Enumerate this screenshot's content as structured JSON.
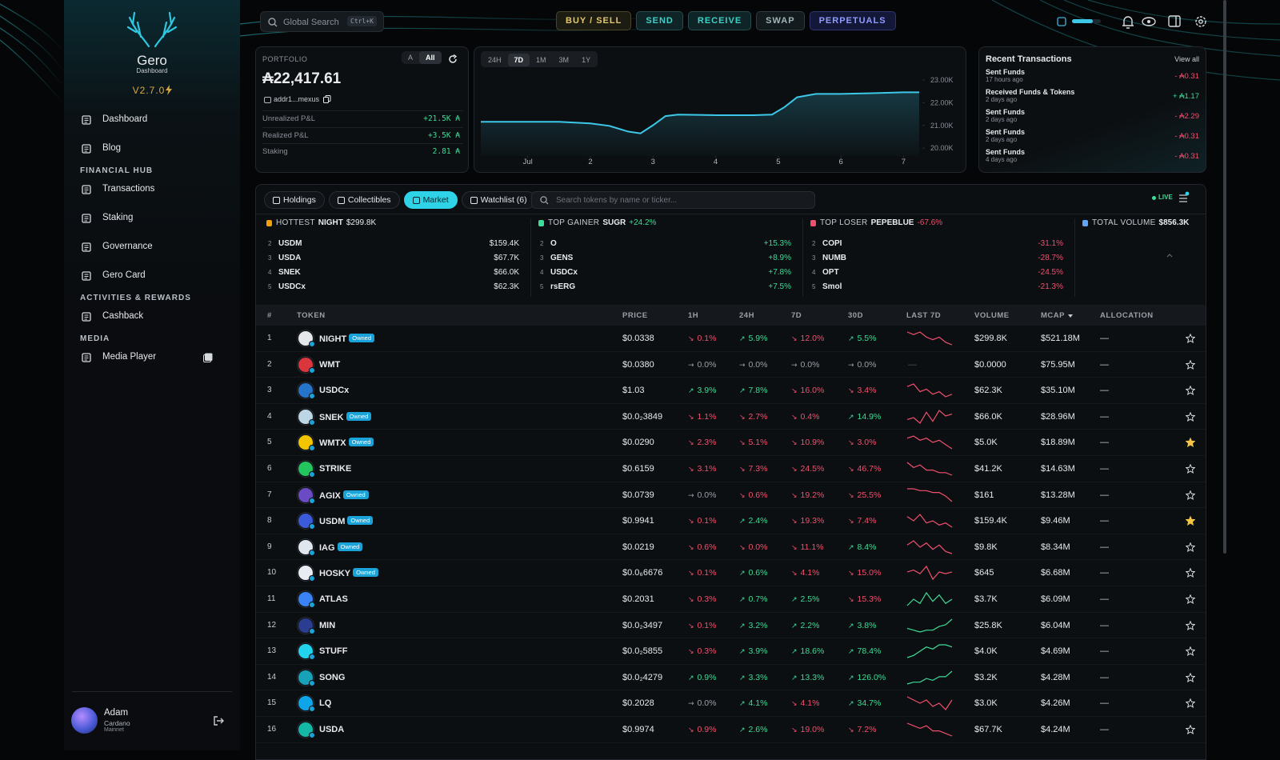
{
  "sidebar": {
    "logo_title": "Gero",
    "logo_subtitle": "Dashboard",
    "version": "V2.7.0",
    "items": [
      {
        "kind": "item",
        "label": "Dashboard"
      },
      {
        "kind": "item",
        "label": "Blog"
      },
      {
        "kind": "section",
        "label": "FINANCIAL HUB"
      },
      {
        "kind": "item",
        "label": "Transactions"
      },
      {
        "kind": "item",
        "label": "Staking"
      },
      {
        "kind": "item",
        "label": "Governance"
      },
      {
        "kind": "item",
        "label": "Gero Card"
      },
      {
        "kind": "section",
        "label": "ACTIVITIES & REWARDS"
      },
      {
        "kind": "item",
        "label": "Cashback"
      },
      {
        "kind": "section",
        "label": "MEDIA"
      },
      {
        "kind": "item",
        "label": "Media Player"
      }
    ],
    "user": {
      "name": "Adam",
      "network": "Cardano",
      "env": "Mainnet"
    }
  },
  "topbar": {
    "search": "Global Search",
    "shortcut": "Ctrl+K",
    "actions": [
      "BUY / SELL",
      "SEND",
      "RECEIVE",
      "SWAP",
      "PERPETUALS"
    ]
  },
  "portfolio": {
    "label": "PORTFOLIO",
    "toggles": [
      "A",
      "All"
    ],
    "active_toggle": 1,
    "balance": "₳22,417.61",
    "address": "addr1...mexus",
    "rows": [
      {
        "label": "Unrealized P&L",
        "value": "+21.5K ₳"
      },
      {
        "label": "Realized P&L",
        "value": "+3.5K ₳"
      },
      {
        "label": "Staking",
        "value": "2.81 ₳"
      }
    ]
  },
  "chart_controls": {
    "periods": [
      "24H",
      "7D",
      "1M",
      "3M",
      "1Y"
    ],
    "active_period": 1
  },
  "chart_data": {
    "type": "area",
    "x": [
      0.25,
      1,
      1.5,
      2,
      2.3,
      2.6,
      2.8,
      3,
      3.2,
      3.4,
      4,
      4.6,
      4.9,
      5.1,
      5.3,
      5.6,
      6,
      6.5,
      7,
      7.25
    ],
    "values": [
      21160,
      21160,
      21160,
      21090,
      20980,
      20730,
      20650,
      21010,
      21410,
      21480,
      21450,
      21450,
      21480,
      21810,
      22240,
      22390,
      22390,
      22420,
      22460,
      22460
    ],
    "xlim": [
      0.25,
      7.25
    ],
    "xticks": [
      {
        "value": 1,
        "label": "Jul"
      },
      2,
      3,
      4,
      5,
      6,
      7
    ],
    "ylim": [
      19650,
      23250
    ],
    "yticks": [
      {
        "value": 23000,
        "label": "23.00K"
      },
      {
        "value": 22000,
        "label": "22.00K"
      },
      {
        "value": 21000,
        "label": "21.00K"
      },
      {
        "value": 20000,
        "label": "20.00K"
      }
    ],
    "color": "#3cc8e8"
  },
  "transactions": {
    "title": "Recent Transactions",
    "link": "View all",
    "items": [
      {
        "name": "Sent Funds",
        "time": "17 hours ago",
        "amount": "- ₳0.31"
      },
      {
        "name": "Received Funds & Tokens",
        "time": "2 days ago",
        "amount": "+ ₳1.17"
      },
      {
        "name": "Sent Funds",
        "time": "2 days ago",
        "amount": "- ₳2.29"
      },
      {
        "name": "Sent Funds",
        "time": "2 days ago",
        "amount": "- ₳0.31"
      },
      {
        "name": "Sent Funds",
        "time": "4 days ago",
        "amount": "- ₳0.31"
      }
    ]
  },
  "market": {
    "tabs": [
      "Holdings",
      "Collectibles",
      "Market",
      "Watchlist (6)"
    ],
    "active_tab": 2,
    "search": "Search tokens by name or ticker...",
    "live": "LIVE",
    "stats": [
      {
        "label": "HOTTEST",
        "token": "NIGHT",
        "value": "$299.8K",
        "tone": "flat",
        "rows": [
          {
            "rank": "2",
            "name": "USDM",
            "value": "$159.4K"
          },
          {
            "rank": "3",
            "name": "USDA",
            "value": "$67.7K"
          },
          {
            "rank": "4",
            "name": "SNEK",
            "value": "$66.0K"
          },
          {
            "rank": "5",
            "name": "USDCx",
            "value": "$62.3K"
          }
        ]
      },
      {
        "label": "TOP GAINER",
        "token": "SUGR",
        "value": "+24.2%",
        "tone": "up",
        "rows": [
          {
            "rank": "2",
            "name": "O",
            "value": "+15.3%"
          },
          {
            "rank": "3",
            "name": "GENS",
            "value": "+8.9%"
          },
          {
            "rank": "4",
            "name": "USDCx",
            "value": "+7.8%"
          },
          {
            "rank": "5",
            "name": "rsERG",
            "value": "+7.5%"
          }
        ]
      },
      {
        "label": "TOP LOSER",
        "token": "PEPEBLUE",
        "value": "-67.6%",
        "tone": "down",
        "rows": [
          {
            "rank": "2",
            "name": "COPI",
            "value": "-31.1%"
          },
          {
            "rank": "3",
            "name": "NUMB",
            "value": "-28.7%"
          },
          {
            "rank": "4",
            "name": "OPT",
            "value": "-24.5%"
          },
          {
            "rank": "5",
            "name": "Smol",
            "value": "-21.3%"
          }
        ]
      },
      {
        "label": "TOTAL VOLUME",
        "value": "$856.3K",
        "tone": "flat",
        "rows": []
      }
    ],
    "columns": [
      "#",
      "TOKEN",
      "PRICE",
      "1H",
      "24H",
      "7D",
      "30D",
      "LAST 7D",
      "VOLUME",
      "MCAP",
      "ALLOCATION"
    ],
    "rows": [
      {
        "rank": "1",
        "name": "NIGHT",
        "owned": "Owned",
        "price": "$0.0338",
        "changes": [
          "0.1%",
          "5.9%",
          "12.0%",
          "5.5%"
        ],
        "trends": [
          "down",
          "up",
          "down",
          "up"
        ],
        "spark": [
          8,
          7,
          8,
          6,
          5,
          6,
          4,
          3
        ],
        "volume": "$299.8K",
        "mcap": "$521.18M",
        "allocation": "—",
        "starred": false,
        "icon": "#e5e7eb"
      },
      {
        "rank": "2",
        "name": "WMT",
        "price": "$0.0380",
        "changes": [
          "0.0%",
          "0.0%",
          "0.0%",
          "0.0%"
        ],
        "trends": [
          "flat",
          "flat",
          "flat",
          "flat"
        ],
        "last7d": "—",
        "volume": "$0.0000",
        "mcap": "$75.95M",
        "allocation": "—",
        "starred": false,
        "icon": "#d9363e"
      },
      {
        "rank": "3",
        "name": "USDCx",
        "price": "$1.03",
        "changes": [
          "3.9%",
          "7.8%",
          "16.0%",
          "3.4%"
        ],
        "trends": [
          "up",
          "up",
          "down",
          "down"
        ],
        "spark": [
          8,
          9,
          6,
          7,
          5,
          6,
          4,
          5
        ],
        "volume": "$62.3K",
        "mcap": "$35.10M",
        "allocation": "—",
        "starred": false,
        "icon": "#2775ca"
      },
      {
        "rank": "4",
        "name": "SNEK",
        "owned": "Owned",
        "price": "$0.0₂3849",
        "changes": [
          "1.1%",
          "2.7%",
          "0.4%",
          "14.9%"
        ],
        "trends": [
          "down",
          "down",
          "down",
          "up"
        ],
        "spark": [
          4,
          5,
          2,
          8,
          3,
          9,
          6,
          7
        ],
        "volume": "$66.0K",
        "mcap": "$28.96M",
        "allocation": "—",
        "starred": false,
        "icon": "#bcd6e6"
      },
      {
        "rank": "5",
        "name": "WMTX",
        "owned": "Owned",
        "price": "$0.0290",
        "changes": [
          "2.3%",
          "5.1%",
          "10.9%",
          "3.0%"
        ],
        "trends": [
          "down",
          "down",
          "down",
          "down"
        ],
        "spark": [
          8,
          9,
          7,
          8,
          6,
          7,
          5,
          3
        ],
        "volume": "$5.0K",
        "mcap": "$18.89M",
        "allocation": "—",
        "starred": true,
        "icon": "#f2c500"
      },
      {
        "rank": "6",
        "name": "STRIKE",
        "price": "$0.6159",
        "changes": [
          "3.1%",
          "7.3%",
          "24.5%",
          "46.7%"
        ],
        "trends": [
          "down",
          "down",
          "down",
          "down"
        ],
        "spark": [
          9,
          7,
          8,
          6,
          6,
          5,
          5,
          4
        ],
        "volume": "$41.2K",
        "mcap": "$14.63M",
        "allocation": "—",
        "starred": false,
        "icon": "#22c55e"
      },
      {
        "rank": "7",
        "name": "AGIX",
        "owned": "Owned",
        "price": "$0.0739",
        "changes": [
          "0.0%",
          "0.6%",
          "19.2%",
          "25.5%"
        ],
        "trends": [
          "flat",
          "down",
          "down",
          "down"
        ],
        "spark": [
          8,
          8,
          7,
          7,
          6,
          6,
          4,
          1
        ],
        "volume": "$161",
        "mcap": "$13.28M",
        "allocation": "—",
        "starred": false,
        "icon": "#6a4bc4"
      },
      {
        "rank": "8",
        "name": "USDM",
        "owned": "Owned",
        "price": "$0.9941",
        "changes": [
          "0.1%",
          "2.4%",
          "19.3%",
          "7.4%"
        ],
        "trends": [
          "down",
          "up",
          "down",
          "down"
        ],
        "spark": [
          8,
          6,
          9,
          5,
          6,
          4,
          5,
          3
        ],
        "volume": "$159.4K",
        "mcap": "$9.46M",
        "allocation": "—",
        "starred": true,
        "icon": "#3b5bdb"
      },
      {
        "rank": "9",
        "name": "IAG",
        "owned": "Owned",
        "price": "$0.0219",
        "changes": [
          "0.6%",
          "0.0%",
          "11.1%",
          "8.4%"
        ],
        "trends": [
          "down",
          "down",
          "down",
          "up"
        ],
        "spark": [
          7,
          9,
          6,
          8,
          5,
          7,
          4,
          3
        ],
        "volume": "$9.8K",
        "mcap": "$8.34M",
        "allocation": "—",
        "starred": false,
        "icon": "#dfe6ee"
      },
      {
        "rank": "10",
        "name": "HOSKY",
        "owned": "Owned",
        "price": "$0.0₆6676",
        "changes": [
          "0.1%",
          "0.6%",
          "4.1%",
          "15.0%"
        ],
        "trends": [
          "down",
          "up",
          "down",
          "down"
        ],
        "spark": [
          6,
          7,
          5,
          9,
          2,
          6,
          5,
          6
        ],
        "volume": "$645",
        "mcap": "$6.68M",
        "allocation": "—",
        "starred": false,
        "icon": "#e8ecf3"
      },
      {
        "rank": "11",
        "name": "ATLAS",
        "price": "$0.2031",
        "changes": [
          "0.3%",
          "0.7%",
          "2.5%",
          "15.3%"
        ],
        "trends": [
          "down",
          "up",
          "up",
          "down"
        ],
        "spark": [
          3,
          6,
          4,
          9,
          5,
          8,
          4,
          6
        ],
        "volume": "$3.7K",
        "mcap": "$6.09M",
        "allocation": "—",
        "starred": false,
        "icon": "#3b82f6"
      },
      {
        "rank": "12",
        "name": "MIN",
        "price": "$0.0₂3497",
        "changes": [
          "0.1%",
          "3.2%",
          "2.2%",
          "3.8%"
        ],
        "trends": [
          "down",
          "up",
          "up",
          "up"
        ],
        "spark": [
          4,
          3,
          2,
          3,
          3,
          5,
          6,
          9
        ],
        "volume": "$25.8K",
        "mcap": "$6.04M",
        "allocation": "—",
        "starred": false,
        "icon": "#2b3d91"
      },
      {
        "rank": "13",
        "name": "STUFF",
        "price": "$0.0₂5855",
        "changes": [
          "0.3%",
          "3.9%",
          "18.6%",
          "78.4%"
        ],
        "trends": [
          "down",
          "up",
          "up",
          "up"
        ],
        "spark": [
          2,
          3,
          5,
          7,
          6,
          8,
          8,
          7
        ],
        "volume": "$4.0K",
        "mcap": "$4.69M",
        "allocation": "—",
        "starred": false,
        "icon": "#22d3ee"
      },
      {
        "rank": "14",
        "name": "SONG",
        "price": "$0.0₂4279",
        "changes": [
          "0.9%",
          "3.3%",
          "13.3%",
          "126.0%"
        ],
        "trends": [
          "up",
          "up",
          "up",
          "up"
        ],
        "spark": [
          2,
          3,
          3,
          5,
          4,
          6,
          6,
          9
        ],
        "volume": "$3.2K",
        "mcap": "$4.28M",
        "allocation": "—",
        "starred": false,
        "icon": "#17a2b8"
      },
      {
        "rank": "15",
        "name": "LQ",
        "price": "$0.2028",
        "changes": [
          "0.0%",
          "4.1%",
          "4.1%",
          "34.7%"
        ],
        "trends": [
          "flat",
          "up",
          "down",
          "up"
        ],
        "spark": [
          7,
          6,
          5,
          6,
          4,
          5,
          3,
          6
        ],
        "volume": "$3.0K",
        "mcap": "$4.26M",
        "allocation": "—",
        "starred": false,
        "icon": "#0ea5e9"
      },
      {
        "rank": "16",
        "name": "USDA",
        "price": "$0.9974",
        "changes": [
          "0.9%",
          "2.6%",
          "19.0%",
          "7.2%"
        ],
        "trends": [
          "down",
          "up",
          "down",
          "down"
        ],
        "spark": [
          8,
          7,
          6,
          7,
          5,
          5,
          4,
          3
        ],
        "volume": "$67.7K",
        "mcap": "$4.24M",
        "allocation": "—",
        "starred": false,
        "icon": "#14b8a6"
      }
    ]
  },
  "colors": {
    "up": "#3ddc97",
    "down": "#f0506e",
    "flat": "#9aa0a8",
    "accent": "#2fd3e8",
    "gold": "#d8aa45"
  }
}
